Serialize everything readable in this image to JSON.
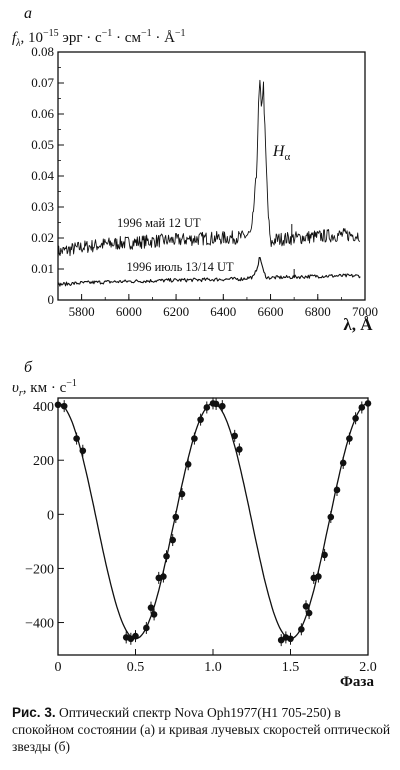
{
  "caption": {
    "lead": "Рис. 3.",
    "text": "Оптический спектр Nova Oph1977(H1 705-250) в спокойном состоянии (а) и кривая лучевых скоростей оптической звезды (б)"
  },
  "chart_data": [
    {
      "panel": "а",
      "type": "line",
      "ylabel": "f_λ, 10^-15 эрг · с^-1 · см^-1 · Å^-1",
      "ylabel_parts": {
        "sym": "f",
        "sub": "λ",
        "a": ", 10",
        "e1": "−15",
        "b": " эрг · с",
        "e2": "−1",
        "c": " · см",
        "e3": "−1",
        "d": " · Å",
        "e4": "−1"
      },
      "xlabel": "λ, Å",
      "xlim": [
        5700,
        7000
      ],
      "ylim": [
        0,
        0.08
      ],
      "xticks": [
        "5800",
        "6000",
        "6200",
        "6400",
        "6600",
        "6800",
        "7000"
      ],
      "yticks": [
        "0",
        "0.01",
        "0.02",
        "0.03",
        "0.04",
        "0.05",
        "0.06",
        "0.07",
        "0.08"
      ],
      "annotations": [
        {
          "text": "1996 май 12 UT",
          "x": 5950,
          "y": 0.0235
        },
        {
          "text": "1996 июль 13/14 UT",
          "x": 5990,
          "y": 0.0093
        },
        {
          "text_main": "H",
          "text_sub": "α",
          "x": 6610,
          "y": 0.0465
        }
      ],
      "series": [
        {
          "name": "1996 май 12 UT",
          "x": [
            5700,
            5800,
            5900,
            6000,
            6100,
            6200,
            6300,
            6400,
            6480,
            6520,
            6540,
            6550,
            6556,
            6560,
            6564,
            6570,
            6578,
            6590,
            6600,
            6620,
            6700,
            6800,
            6900,
            6980
          ],
          "y": [
            0.0155,
            0.017,
            0.018,
            0.0185,
            0.019,
            0.0193,
            0.0198,
            0.02,
            0.0203,
            0.0215,
            0.04,
            0.064,
            0.071,
            0.06,
            0.065,
            0.069,
            0.05,
            0.028,
            0.018,
            0.0195,
            0.02,
            0.0205,
            0.021,
            0.021
          ]
        },
        {
          "name": "1996 июль 13/14 UT",
          "x": [
            5700,
            5800,
            5900,
            6000,
            6100,
            6200,
            6300,
            6400,
            6480,
            6530,
            6545,
            6555,
            6562,
            6570,
            6585,
            6600,
            6700,
            6800,
            6900,
            6980
          ],
          "y": [
            0.005,
            0.0055,
            0.0058,
            0.006,
            0.0062,
            0.0064,
            0.0065,
            0.0067,
            0.0068,
            0.0075,
            0.011,
            0.014,
            0.012,
            0.009,
            0.0072,
            0.0072,
            0.0074,
            0.0077,
            0.0078,
            0.0078
          ]
        }
      ]
    },
    {
      "panel": "б",
      "type": "scatter",
      "ylabel": "υ_r, км · с^-1",
      "ylabel_parts": {
        "sym": "υ",
        "sub": "r",
        "a": ", км · с",
        "e1": "−1"
      },
      "xlabel": "Фаза",
      "xlim": [
        0,
        2
      ],
      "ylim": [
        -520,
        430
      ],
      "xticks": [
        "0",
        "0.5",
        "1.0",
        "1.5",
        "2.0"
      ],
      "yticks": [
        "−400",
        "−200",
        "0",
        "200",
        "400"
      ],
      "curve": {
        "type": "line",
        "amplitude": 435,
        "gamma": -25
      },
      "points": {
        "x": [
          0.0,
          0.04,
          0.12,
          0.16,
          0.44,
          0.47,
          0.5,
          0.57,
          0.6,
          0.62,
          0.65,
          0.68,
          0.7,
          0.74,
          0.76,
          0.8,
          0.84,
          0.88,
          0.92,
          0.96,
          1.0,
          1.02,
          1.06,
          1.14,
          1.17,
          1.44,
          1.47,
          1.5,
          1.57,
          1.6,
          1.62,
          1.65,
          1.68,
          1.72,
          1.76,
          1.8,
          1.84,
          1.88,
          1.92,
          1.96,
          2.0
        ],
        "y": [
          405,
          400,
          280,
          235,
          -455,
          -460,
          -450,
          -420,
          -345,
          -370,
          -235,
          -230,
          -155,
          -95,
          -10,
          75,
          185,
          280,
          350,
          395,
          410,
          408,
          400,
          290,
          240,
          -465,
          -455,
          -460,
          -425,
          -340,
          -365,
          -235,
          -230,
          -150,
          -10,
          90,
          190,
          280,
          355,
          395,
          410
        ]
      }
    }
  ]
}
